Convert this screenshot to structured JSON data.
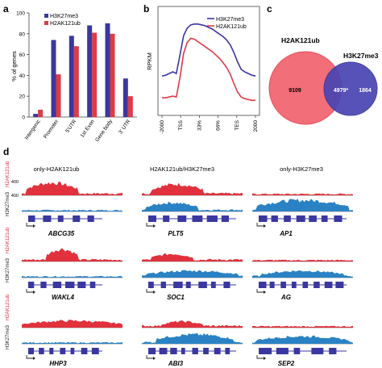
{
  "colors": {
    "h3k27me3": "#3a37a0",
    "h2ak121ub": "#dd3b46",
    "blue_track": "#2a82c4",
    "red_track": "#e0313c",
    "gene": "#3a37a0",
    "venn_red": "#f26e78",
    "venn_blue": "#4b45b2",
    "text": "#222222"
  },
  "panels": {
    "a": "a",
    "b": "b",
    "c": "c",
    "d": "d"
  },
  "chart_data": [
    {
      "panel": "a",
      "type": "bar",
      "ylabel": "% of genes",
      "ylim": [
        0,
        100
      ],
      "yticks": [
        0,
        20,
        40,
        60,
        80,
        100
      ],
      "categories": [
        "Intergenic",
        "Promoter",
        "5'UTR",
        "1st Exon",
        "Gene body",
        "3' UTR"
      ],
      "series": [
        {
          "name": "H3K27me3",
          "values": [
            3,
            74,
            78,
            88,
            90,
            37
          ]
        },
        {
          "name": "H2AK121ub",
          "values": [
            7,
            41,
            68,
            81,
            80,
            20
          ]
        }
      ],
      "legend": "top-left"
    },
    {
      "panel": "b",
      "type": "line",
      "ylabel": "RPKM",
      "xticks": [
        "-2000",
        "TSS",
        "33%",
        "66%",
        "TES",
        "2000"
      ],
      "series": [
        {
          "name": "H3K27me3",
          "values": [
            47,
            48,
            50,
            52,
            50,
            72,
            95,
            104,
            108,
            109,
            109,
            108,
            107,
            105,
            103,
            100,
            97,
            94,
            90,
            84,
            75,
            64,
            55,
            52,
            50,
            48,
            47
          ]
        },
        {
          "name": "H2AK121ub",
          "values": [
            21,
            21,
            22,
            23,
            22,
            45,
            74,
            87,
            92,
            91,
            88,
            85,
            82,
            79,
            76,
            72,
            68,
            63,
            57,
            49,
            38,
            28,
            22,
            20,
            19,
            18,
            18
          ]
        }
      ],
      "legend": "top-right"
    },
    {
      "panel": "c",
      "type": "venn",
      "sets": [
        "H2AK121ub",
        "H3K27me3"
      ],
      "only_a": "9109",
      "both": "4979*",
      "only_b": "1864"
    }
  ],
  "tracks": {
    "columns": [
      "only-H2AK121ub",
      "H2AK121ub/H3K27me3",
      "only-H3K27me3"
    ],
    "ylabel_h3": "H3K27me3",
    "ylabel_h2": "H2AK121ub",
    "scale_top": "400",
    "scale_bottom": "400",
    "genes": [
      [
        "ABCG35",
        "PLT5",
        "AP1"
      ],
      [
        "WAKL4",
        "SOC1",
        "AG"
      ],
      [
        "HHP3",
        "ABI3",
        "SEP2"
      ]
    ]
  }
}
